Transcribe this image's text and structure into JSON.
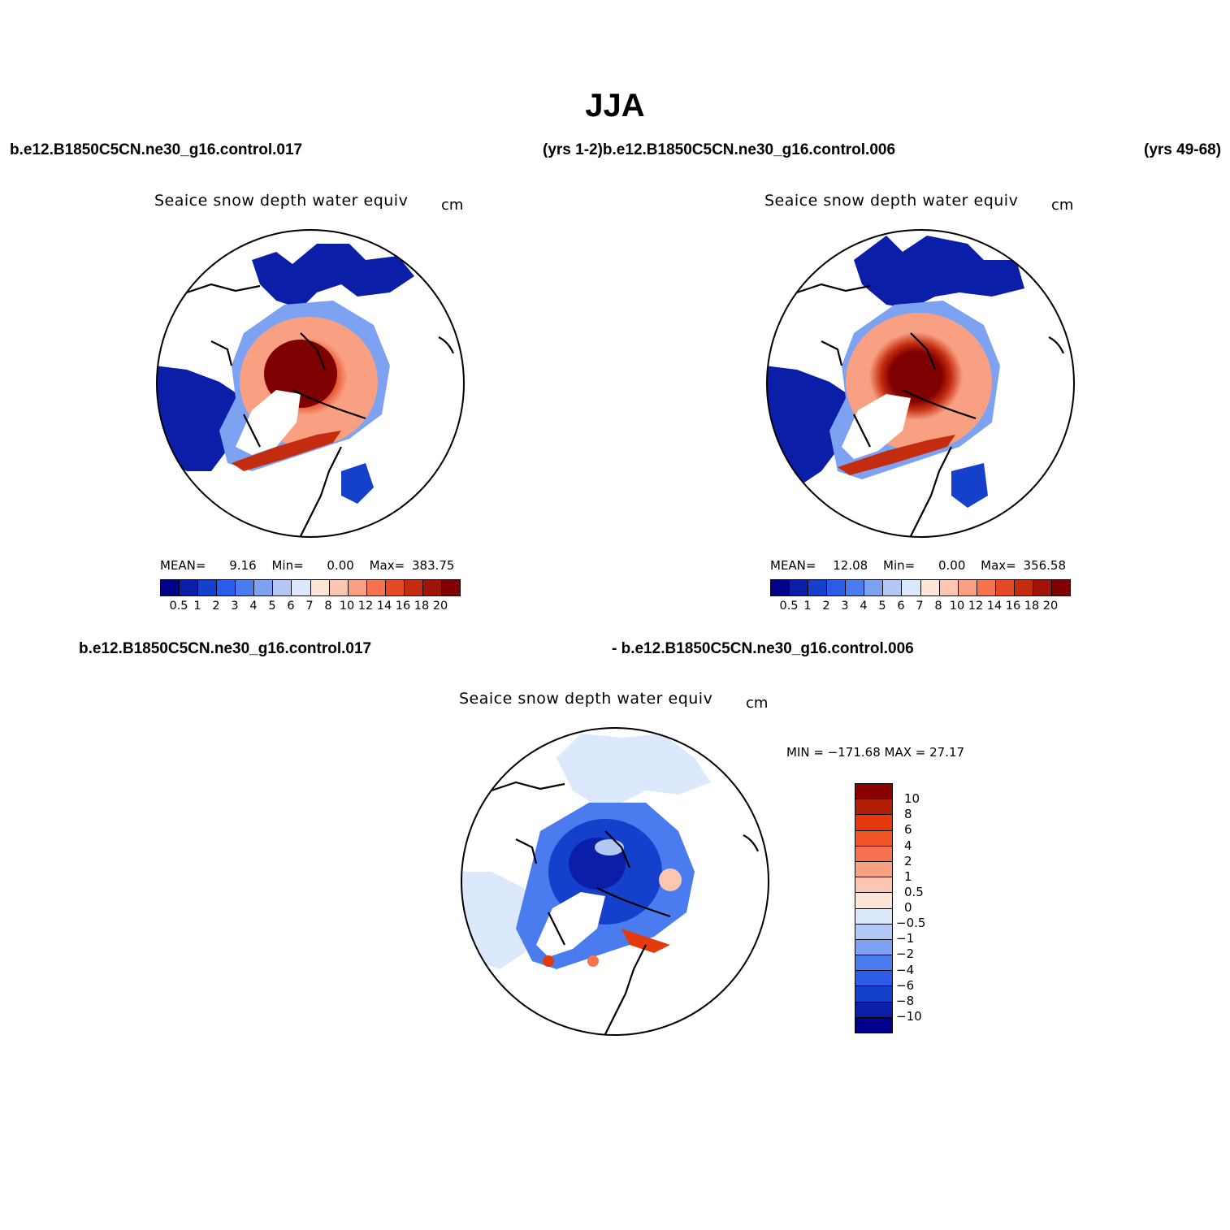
{
  "title": "JJA",
  "header": {
    "case1": "b.e12.B1850C5CN.ne30_g16.control.017",
    "yrs1_case2": "(yrs 1-2)b.e12.B1850C5CN.ne30_g16.control.006",
    "yrs2": "(yrs 49-68)",
    "diff_case1": "b.e12.B1850C5CN.ne30_g16.control.017",
    "diff_case2": "- b.e12.B1850C5CN.ne30_g16.control.006"
  },
  "panels": [
    {
      "title": "Seaice snow depth water equiv",
      "units": "cm",
      "mean_label": "MEAN=",
      "mean": "9.16",
      "min_label": "Min=",
      "min": "0.00",
      "max_label": "Max=",
      "max": "383.75"
    },
    {
      "title": "Seaice snow depth water equiv",
      "units": "cm",
      "mean_label": "MEAN=",
      "mean": "12.08",
      "min_label": "Min=",
      "min": "0.00",
      "max_label": "Max=",
      "max": "356.58"
    },
    {
      "title": "Seaice snow depth water equiv",
      "units": "cm",
      "minmax": "MIN = −171.68 MAX =   27.17"
    }
  ],
  "colors": {
    "abs_scale": [
      "#00008b",
      "#0a1ea8",
      "#1440cc",
      "#2a5ce8",
      "#4a7cf0",
      "#7ea2f2",
      "#b4c8f6",
      "#dce8fc",
      "#fde6d8",
      "#fcc6b0",
      "#f9a082",
      "#f67350",
      "#e44a24",
      "#c42c10",
      "#a01408",
      "#7e0000"
    ],
    "diff_scale": [
      "#00008b",
      "#0a1ea8",
      "#1440cc",
      "#2a5ce8",
      "#4a7cf0",
      "#7ea2f2",
      "#b4c8f6",
      "#dce8fc",
      "#fde6d8",
      "#fcc6b0",
      "#f9a082",
      "#f67350",
      "#f25424",
      "#e23a0c",
      "#b01e08",
      "#8a0000"
    ]
  },
  "chart_data": [
    {
      "type": "heatmap",
      "title": "Seaice snow depth water equiv",
      "case": "b.e12.B1850C5CN.ne30_g16.control.017",
      "years": "yrs 1-2",
      "season": "JJA",
      "units": "cm",
      "colorbar_levels": [
        "0.5",
        "1",
        "2",
        "3",
        "4",
        "5",
        "6",
        "7",
        "8",
        "10",
        "12",
        "14",
        "16",
        "18",
        "20"
      ],
      "mean": 9.16,
      "min": 0.0,
      "max": 383.75
    },
    {
      "type": "heatmap",
      "title": "Seaice snow depth water equiv",
      "case": "b.e12.B1850C5CN.ne30_g16.control.006",
      "years": "yrs 49-68",
      "season": "JJA",
      "units": "cm",
      "colorbar_levels": [
        "0.5",
        "1",
        "2",
        "3",
        "4",
        "5",
        "6",
        "7",
        "8",
        "10",
        "12",
        "14",
        "16",
        "18",
        "20"
      ],
      "mean": 12.08,
      "min": 0.0,
      "max": 356.58
    },
    {
      "type": "heatmap",
      "title": "Seaice snow depth water equiv",
      "case": "b.e12.B1850C5CN.ne30_g16.control.017 - b.e12.B1850C5CN.ne30_g16.control.006",
      "season": "JJA",
      "units": "cm",
      "colorbar_levels": [
        "10",
        "8",
        "6",
        "4",
        "2",
        "1",
        "0.5",
        "0",
        "−0.5",
        "−1",
        "−2",
        "−4",
        "−6",
        "−8",
        "−10"
      ],
      "min": -171.68,
      "max": 27.17
    }
  ]
}
